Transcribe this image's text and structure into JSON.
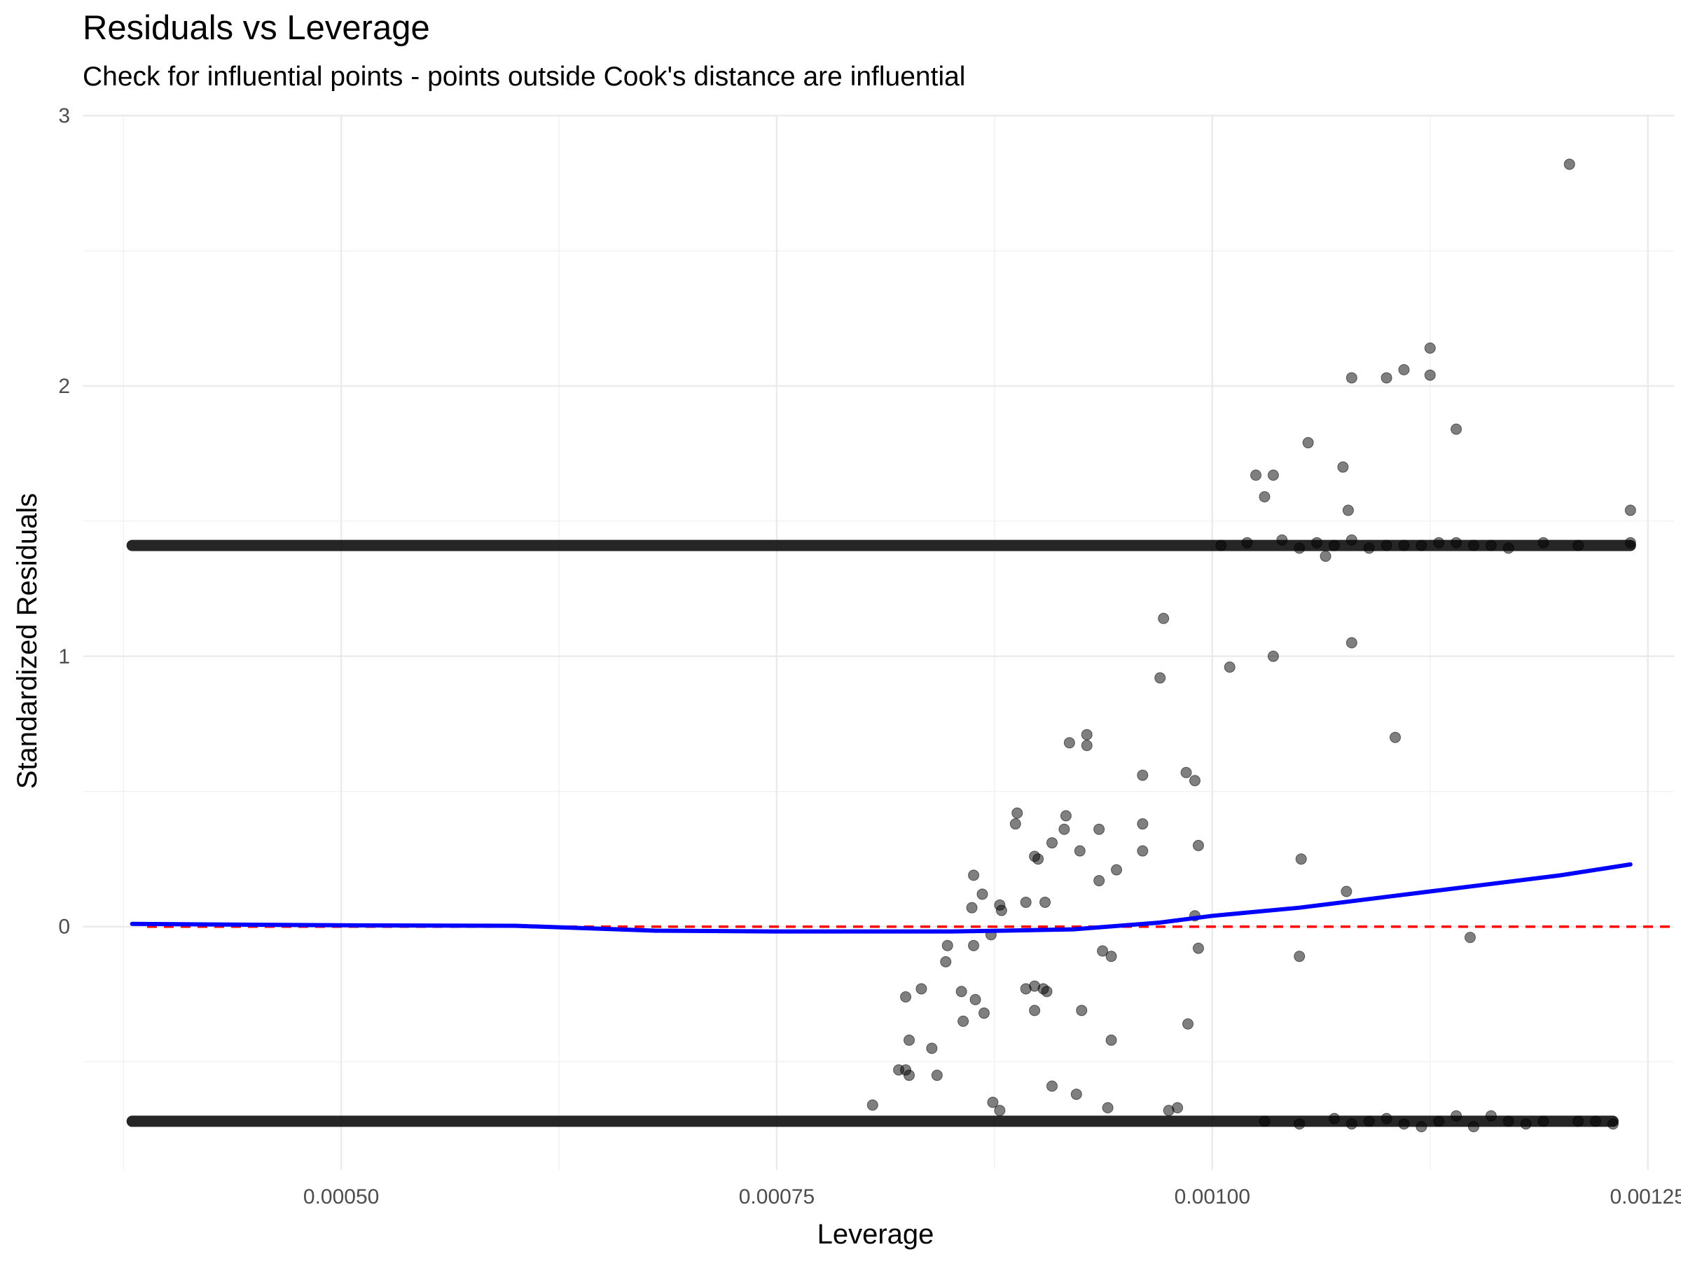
{
  "chart_data": {
    "type": "scatter",
    "title": "Residuals vs Leverage",
    "subtitle": "Check for influential points - points outside Cook's distance are influential",
    "xlabel": "Leverage",
    "ylabel": "Standardized Residuals",
    "xlim": [
      0.000352,
      0.001265
    ],
    "ylim": [
      -0.9,
      3.0
    ],
    "x_ticks": [
      {
        "value": 0.0005,
        "label": "0.00050"
      },
      {
        "value": 0.00075,
        "label": "0.00075"
      },
      {
        "value": 0.001,
        "label": "0.00100"
      },
      {
        "value": 0.00125,
        "label": "0.00125"
      }
    ],
    "y_ticks": [
      {
        "value": 0,
        "label": "0"
      },
      {
        "value": 1,
        "label": "1"
      },
      {
        "value": 2,
        "label": "2"
      },
      {
        "value": 3,
        "label": "3"
      }
    ],
    "grid": true,
    "point_color": "#000000",
    "point_opacity": 0.5,
    "reference_line": {
      "y": 0,
      "color": "#ff0000",
      "style": "dashed"
    },
    "smooth_line": {
      "color": "#0000ff",
      "x": [
        0.00038,
        0.0005,
        0.0006,
        0.00068,
        0.00075,
        0.00085,
        0.00088,
        0.00092,
        0.00097,
        0.001,
        0.00105,
        0.0011,
        0.00115,
        0.0012,
        0.00124
      ],
      "y": [
        0.01,
        0.005,
        0.003,
        -0.015,
        -0.018,
        -0.018,
        -0.015,
        -0.01,
        0.015,
        0.04,
        0.07,
        0.11,
        0.15,
        0.19,
        0.23
      ]
    },
    "band_upper": {
      "y": 1.41,
      "x_start": 0.00038,
      "x_end": 0.00124
    },
    "band_lower": {
      "y": -0.72,
      "x_start": 0.00038,
      "x_end": 0.00123
    },
    "points": [
      {
        "x": 0.001205,
        "y": 2.82
      },
      {
        "x": 0.001125,
        "y": 2.14
      },
      {
        "x": 0.00111,
        "y": 2.06
      },
      {
        "x": 0.001125,
        "y": 2.04
      },
      {
        "x": 0.00108,
        "y": 2.03
      },
      {
        "x": 0.0011,
        "y": 2.03
      },
      {
        "x": 0.00114,
        "y": 1.84
      },
      {
        "x": 0.001055,
        "y": 1.79
      },
      {
        "x": 0.001075,
        "y": 1.7
      },
      {
        "x": 0.001025,
        "y": 1.67
      },
      {
        "x": 0.001035,
        "y": 1.67
      },
      {
        "x": 0.00103,
        "y": 1.59
      },
      {
        "x": 0.001078,
        "y": 1.54
      },
      {
        "x": 0.00124,
        "y": 1.54
      },
      {
        "x": 0.00124,
        "y": 1.42
      },
      {
        "x": 0.001065,
        "y": 1.37
      },
      {
        "x": 0.000972,
        "y": 1.14
      },
      {
        "x": 0.00108,
        "y": 1.05
      },
      {
        "x": 0.001035,
        "y": 1.0
      },
      {
        "x": 0.00101,
        "y": 0.96
      },
      {
        "x": 0.00097,
        "y": 0.92
      },
      {
        "x": 0.000928,
        "y": 0.71
      },
      {
        "x": 0.000918,
        "y": 0.68
      },
      {
        "x": 0.000928,
        "y": 0.67
      },
      {
        "x": 0.001105,
        "y": 0.7
      },
      {
        "x": 0.00096,
        "y": 0.56
      },
      {
        "x": 0.000985,
        "y": 0.57
      },
      {
        "x": 0.00099,
        "y": 0.54
      },
      {
        "x": 0.000888,
        "y": 0.42
      },
      {
        "x": 0.000916,
        "y": 0.41
      },
      {
        "x": 0.000887,
        "y": 0.38
      },
      {
        "x": 0.000935,
        "y": 0.36
      },
      {
        "x": 0.00096,
        "y": 0.38
      },
      {
        "x": 0.000915,
        "y": 0.36
      },
      {
        "x": 0.000908,
        "y": 0.31
      },
      {
        "x": 0.000992,
        "y": 0.3
      },
      {
        "x": 0.000924,
        "y": 0.28
      },
      {
        "x": 0.00096,
        "y": 0.28
      },
      {
        "x": 0.000898,
        "y": 0.26
      },
      {
        "x": 0.0009,
        "y": 0.25
      },
      {
        "x": 0.001051,
        "y": 0.25
      },
      {
        "x": 0.000945,
        "y": 0.21
      },
      {
        "x": 0.000863,
        "y": 0.19
      },
      {
        "x": 0.000935,
        "y": 0.17
      },
      {
        "x": 0.000868,
        "y": 0.12
      },
      {
        "x": 0.001077,
        "y": 0.13
      },
      {
        "x": 0.000878,
        "y": 0.08
      },
      {
        "x": 0.000893,
        "y": 0.09
      },
      {
        "x": 0.000904,
        "y": 0.09
      },
      {
        "x": 0.000862,
        "y": 0.07
      },
      {
        "x": 0.000879,
        "y": 0.06
      },
      {
        "x": 0.00099,
        "y": 0.04
      },
      {
        "x": 0.000873,
        "y": -0.03
      },
      {
        "x": 0.001148,
        "y": -0.04
      },
      {
        "x": 0.000848,
        "y": -0.07
      },
      {
        "x": 0.000863,
        "y": -0.07
      },
      {
        "x": 0.000992,
        "y": -0.08
      },
      {
        "x": 0.000937,
        "y": -0.09
      },
      {
        "x": 0.000942,
        "y": -0.11
      },
      {
        "x": 0.00105,
        "y": -0.11
      },
      {
        "x": 0.000847,
        "y": -0.13
      },
      {
        "x": 0.000893,
        "y": -0.23
      },
      {
        "x": 0.000898,
        "y": -0.22
      },
      {
        "x": 0.000903,
        "y": -0.23
      },
      {
        "x": 0.000905,
        "y": -0.24
      },
      {
        "x": 0.000833,
        "y": -0.23
      },
      {
        "x": 0.000856,
        "y": -0.24
      },
      {
        "x": 0.000824,
        "y": -0.26
      },
      {
        "x": 0.000864,
        "y": -0.27
      },
      {
        "x": 0.000898,
        "y": -0.31
      },
      {
        "x": 0.000925,
        "y": -0.31
      },
      {
        "x": 0.000869,
        "y": -0.32
      },
      {
        "x": 0.000857,
        "y": -0.35
      },
      {
        "x": 0.000986,
        "y": -0.36
      },
      {
        "x": 0.000826,
        "y": -0.42
      },
      {
        "x": 0.000942,
        "y": -0.42
      },
      {
        "x": 0.000839,
        "y": -0.45
      },
      {
        "x": 0.00082,
        "y": -0.53
      },
      {
        "x": 0.000824,
        "y": -0.53
      },
      {
        "x": 0.000826,
        "y": -0.55
      },
      {
        "x": 0.000842,
        "y": -0.55
      },
      {
        "x": 0.000908,
        "y": -0.59
      },
      {
        "x": 0.000922,
        "y": -0.62
      },
      {
        "x": 0.000874,
        "y": -0.65
      },
      {
        "x": 0.000805,
        "y": -0.66
      },
      {
        "x": 0.00094,
        "y": -0.67
      },
      {
        "x": 0.000975,
        "y": -0.68
      },
      {
        "x": 0.000878,
        "y": -0.68
      },
      {
        "x": 0.00098,
        "y": -0.67
      },
      {
        "x": 0.00102,
        "y": 1.42
      },
      {
        "x": 0.00104,
        "y": 1.43
      },
      {
        "x": 0.00106,
        "y": 1.42
      },
      {
        "x": 0.00108,
        "y": 1.43
      },
      {
        "x": 0.00109,
        "y": 1.4
      },
      {
        "x": 0.00111,
        "y": 1.41
      },
      {
        "x": 0.00113,
        "y": 1.42
      },
      {
        "x": 0.00115,
        "y": 1.41
      },
      {
        "x": 0.00117,
        "y": 1.4
      },
      {
        "x": 0.00119,
        "y": 1.42
      },
      {
        "x": 0.00121,
        "y": 1.41
      },
      {
        "x": 0.00112,
        "y": 1.41
      },
      {
        "x": 0.00114,
        "y": 1.42
      },
      {
        "x": 0.00116,
        "y": 1.41
      },
      {
        "x": 0.00105,
        "y": 1.4
      },
      {
        "x": 0.00107,
        "y": 1.41
      },
      {
        "x": 0.0011,
        "y": 1.41
      },
      {
        "x": 0.001005,
        "y": 1.41
      },
      {
        "x": 0.00103,
        "y": -0.72
      },
      {
        "x": 0.00105,
        "y": -0.73
      },
      {
        "x": 0.00107,
        "y": -0.71
      },
      {
        "x": 0.00109,
        "y": -0.72
      },
      {
        "x": 0.00111,
        "y": -0.73
      },
      {
        "x": 0.00113,
        "y": -0.72
      },
      {
        "x": 0.00115,
        "y": -0.74
      },
      {
        "x": 0.00117,
        "y": -0.72
      },
      {
        "x": 0.00119,
        "y": -0.72
      },
      {
        "x": 0.00121,
        "y": -0.72
      },
      {
        "x": 0.00122,
        "y": -0.72
      },
      {
        "x": 0.00123,
        "y": -0.73
      },
      {
        "x": 0.00114,
        "y": -0.7
      },
      {
        "x": 0.00116,
        "y": -0.7
      },
      {
        "x": 0.0011,
        "y": -0.71
      },
      {
        "x": 0.00118,
        "y": -0.73
      },
      {
        "x": 0.00112,
        "y": -0.74
      },
      {
        "x": 0.00108,
        "y": -0.73
      }
    ]
  }
}
